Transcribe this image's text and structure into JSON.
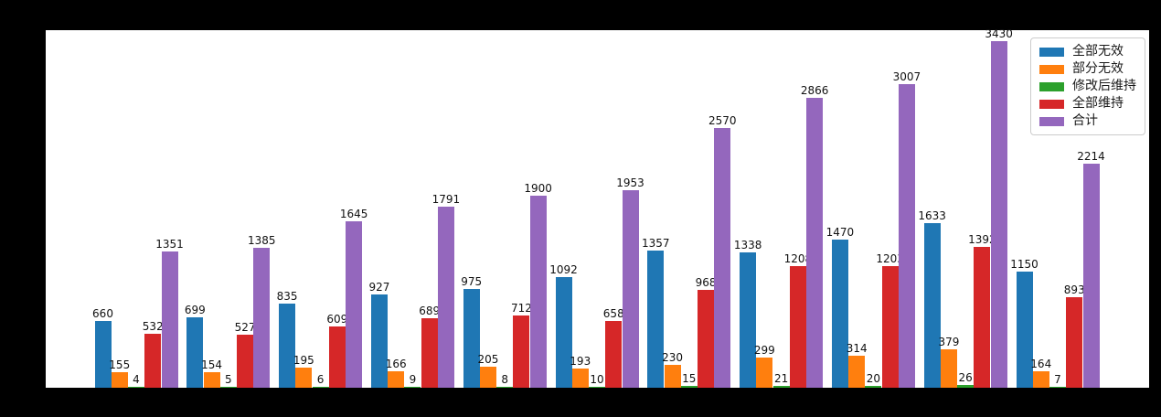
{
  "figure": {
    "background_color": "#000000",
    "plot_background_color": "#ffffff"
  },
  "legend": {
    "position": "upper right",
    "entries": [
      {
        "key": "all-invalid",
        "label": "全部无效",
        "color": "#1f77b4"
      },
      {
        "key": "partially-invalid",
        "label": "部分无效",
        "color": "#ff7f0e"
      },
      {
        "key": "maintained-after-amendment",
        "label": "修改后维持",
        "color": "#2ca02c"
      },
      {
        "key": "fully-maintained",
        "label": "全部维持",
        "color": "#d62728"
      },
      {
        "key": "total",
        "label": "合计",
        "color": "#9467bd"
      }
    ]
  },
  "chart_data": {
    "type": "bar",
    "title": "",
    "xlabel": "",
    "ylabel": "",
    "n_groups": 11,
    "categories": [
      "",
      "",
      "",
      "",
      "",
      "",
      "",
      "",
      "",
      "",
      ""
    ],
    "series": [
      {
        "name": "全部无效",
        "color": "#1f77b4",
        "values": [
          660,
          699,
          835,
          927,
          975,
          1092,
          1357,
          1338,
          1470,
          1633,
          1150
        ]
      },
      {
        "name": "部分无效",
        "color": "#ff7f0e",
        "values": [
          155,
          154,
          195,
          166,
          205,
          193,
          230,
          299,
          314,
          379,
          164
        ]
      },
      {
        "name": "修改后维持",
        "color": "#2ca02c",
        "values": [
          4,
          5,
          6,
          9,
          8,
          10,
          15,
          21,
          20,
          26,
          7
        ]
      },
      {
        "name": "全部维持",
        "color": "#d62728",
        "values": [
          532,
          527,
          609,
          689,
          712,
          658,
          968,
          1208,
          1203,
          1392,
          893
        ]
      },
      {
        "name": "合计",
        "color": "#9467bd",
        "values": [
          1351,
          1385,
          1645,
          1791,
          1900,
          1953,
          2570,
          2866,
          3007,
          3430,
          2214
        ]
      }
    ],
    "bar_value_labels": true,
    "ylim": [
      0,
      3540
    ],
    "grid": false,
    "legend_position": "upper right"
  }
}
